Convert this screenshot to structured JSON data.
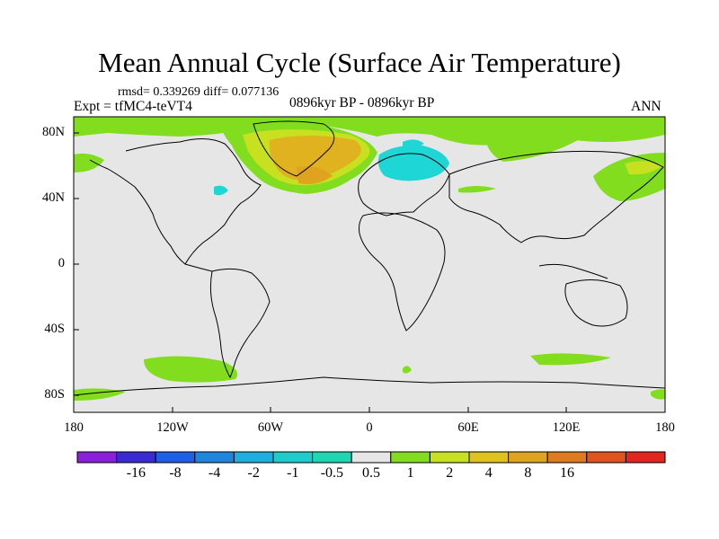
{
  "title": "Mean Annual Cycle (Surface Air Temperature)",
  "stats": {
    "text": "rmsd= 0.339269 diff= 0.077136"
  },
  "experiment": {
    "text": "Expt = tfMC4-teVT4"
  },
  "period": {
    "text": "0896kyr BP - 0896kyr BP"
  },
  "season": {
    "text": "ANN"
  },
  "axes": {
    "y_ticks": [
      "80N",
      "40N",
      "0",
      "40S",
      "80S"
    ],
    "x_ticks": [
      "180",
      "120W",
      "60W",
      "0",
      "60E",
      "120E",
      "180"
    ]
  },
  "colorbar": {
    "labels": [
      "-16",
      "-8",
      "-4",
      "-2",
      "-1",
      "-0.5",
      "0.5",
      "1",
      "2",
      "4",
      "8",
      "16"
    ],
    "colors": [
      "#8c1fd9",
      "#3a2ad1",
      "#1f5ee6",
      "#1f86e0",
      "#1faee0",
      "#1fcccc",
      "#1fd6b3",
      "#e6e6e6",
      "#82dd1f",
      "#c7e01f",
      "#e0c21f",
      "#e0a31f",
      "#e07a1f",
      "#e0551f",
      "#e0261f"
    ]
  },
  "colors": {
    "ocean": "#e6e6e6",
    "coast": "#000000"
  }
}
